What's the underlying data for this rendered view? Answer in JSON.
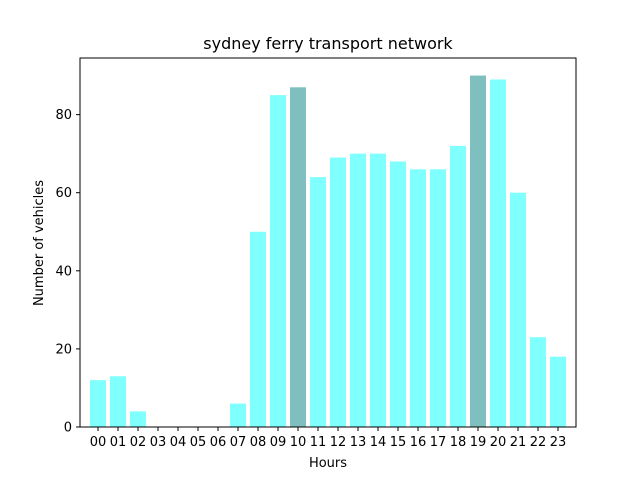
{
  "chart_data": {
    "type": "bar",
    "title": "sydney ferry transport network",
    "xlabel": "Hours",
    "ylabel": "Number of vehicles",
    "categories": [
      "00",
      "01",
      "02",
      "03",
      "04",
      "05",
      "06",
      "07",
      "08",
      "09",
      "10",
      "11",
      "12",
      "13",
      "14",
      "15",
      "16",
      "17",
      "18",
      "19",
      "20",
      "21",
      "22",
      "23"
    ],
    "values": [
      12,
      13,
      4,
      0,
      0,
      0,
      0,
      6,
      50,
      85,
      87,
      64,
      69,
      70,
      70,
      68,
      66,
      66,
      72,
      90,
      89,
      60,
      23,
      18
    ],
    "highlighted": [
      "10",
      "19"
    ],
    "ylim": [
      0,
      94.5
    ],
    "yticks": [
      0,
      20,
      40,
      60,
      80
    ],
    "grid": false,
    "colors": {
      "bar": "#80ffff",
      "highlight": "#80bfbf",
      "axis": "#000000"
    }
  }
}
